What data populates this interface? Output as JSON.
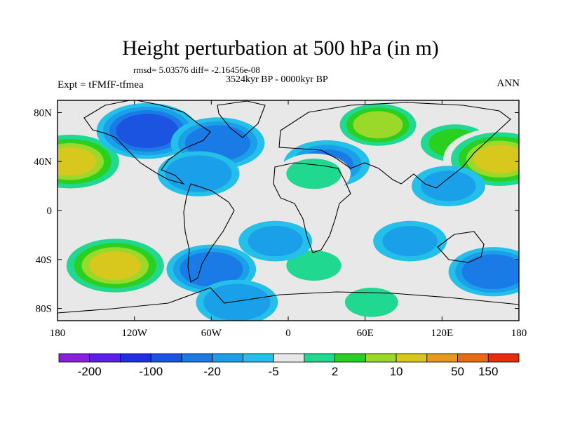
{
  "chart_data": {
    "type": "heatmap",
    "title": "Height perturbation at 500 hPa (in m)",
    "stats_text": "rmsd= 5.03576 diff= -2.16456e-08",
    "period_text": "3524kyr BP - 0000kyr BP",
    "left_label": "Expt = tFMfF-tfmea",
    "right_label": "ANN",
    "x_ticks": [
      "180",
      "120W",
      "60W",
      "0",
      "60E",
      "120E",
      "180"
    ],
    "y_ticks": [
      "80N",
      "40N",
      "0",
      "40S",
      "80S"
    ],
    "xlim": [
      -180,
      180
    ],
    "ylim": [
      -90,
      90
    ],
    "colorbar": {
      "colors": [
        "#8a1fe0",
        "#5b1fe8",
        "#2030e0",
        "#1a54e0",
        "#1a7ae6",
        "#1aa0e8",
        "#24c0ea",
        "#e8e8e8",
        "#20d890",
        "#2ad020",
        "#9ad82a",
        "#d8c81e",
        "#e89a16",
        "#ea6a14",
        "#e82c0e"
      ],
      "labels": [
        "-200",
        "-100",
        "-20",
        "-5",
        "2",
        "10",
        "50",
        "150"
      ]
    },
    "fields": [
      {
        "lon": -170,
        "lat": 40,
        "value": 45
      },
      {
        "lon": -110,
        "lat": 65,
        "value": -22
      },
      {
        "lon": -55,
        "lat": 55,
        "value": -15
      },
      {
        "lon": -70,
        "lat": 30,
        "value": -8
      },
      {
        "lon": 30,
        "lat": 38,
        "value": -10
      },
      {
        "lon": 70,
        "lat": 70,
        "value": 12
      },
      {
        "lon": 130,
        "lat": 55,
        "value": 9
      },
      {
        "lon": 20,
        "lat": 30,
        "value": 5
      },
      {
        "lon": 165,
        "lat": 42,
        "value": 45
      },
      {
        "lon": 125,
        "lat": 20,
        "value": -5
      },
      {
        "lon": -135,
        "lat": -45,
        "value": 40
      },
      {
        "lon": -60,
        "lat": -48,
        "value": -12
      },
      {
        "lon": -40,
        "lat": -75,
        "value": -8
      },
      {
        "lon": 20,
        "lat": -45,
        "value": 5
      },
      {
        "lon": 65,
        "lat": -75,
        "value": 4
      },
      {
        "lon": 160,
        "lat": -50,
        "value": -12
      },
      {
        "lon": -10,
        "lat": -25,
        "value": -5
      },
      {
        "lon": 95,
        "lat": -25,
        "value": -5
      }
    ]
  }
}
